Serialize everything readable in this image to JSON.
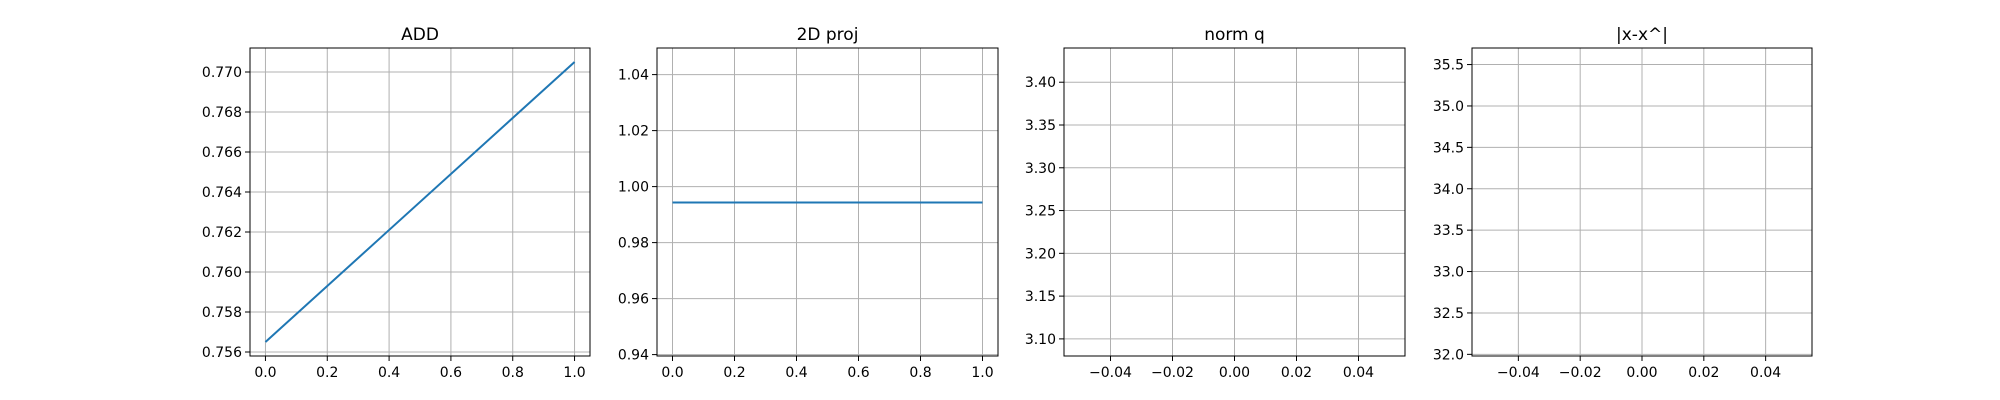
{
  "chart_data": [
    {
      "type": "line",
      "title": "ADD",
      "xlim": [
        -0.05,
        1.05
      ],
      "ylim": [
        0.7558,
        0.7712
      ],
      "xticks": [
        0.0,
        0.2,
        0.4,
        0.6,
        0.8,
        1.0
      ],
      "xtick_labels": [
        "0.0",
        "0.2",
        "0.4",
        "0.6",
        "0.8",
        "1.0"
      ],
      "yticks": [
        0.756,
        0.758,
        0.76,
        0.762,
        0.764,
        0.766,
        0.768,
        0.77
      ],
      "ytick_labels": [
        "0.756",
        "0.758",
        "0.760",
        "0.762",
        "0.764",
        "0.766",
        "0.768",
        "0.770"
      ],
      "grid": true,
      "series": [
        {
          "x": [
            0.0,
            1.0
          ],
          "y": [
            0.7565,
            0.7705
          ],
          "color": "#1f77b4"
        }
      ]
    },
    {
      "type": "line",
      "title": "2D proj",
      "xlim": [
        -0.05,
        1.05
      ],
      "ylim": [
        0.9395,
        1.0495
      ],
      "xticks": [
        0.0,
        0.2,
        0.4,
        0.6,
        0.8,
        1.0
      ],
      "xtick_labels": [
        "0.0",
        "0.2",
        "0.4",
        "0.6",
        "0.8",
        "1.0"
      ],
      "yticks": [
        0.94,
        0.96,
        0.98,
        1.0,
        1.02,
        1.04
      ],
      "ytick_labels": [
        "0.94",
        "0.96",
        "0.98",
        "1.00",
        "1.02",
        "1.04"
      ],
      "grid": true,
      "series": [
        {
          "x": [
            0.0,
            1.0
          ],
          "y": [
            0.9943,
            0.9943
          ],
          "color": "#1f77b4"
        }
      ]
    },
    {
      "type": "line",
      "title": "norm q",
      "xlim": [
        -0.055,
        0.055
      ],
      "ylim": [
        3.08,
        3.44
      ],
      "xticks": [
        -0.04,
        -0.02,
        0.0,
        0.02,
        0.04
      ],
      "xtick_labels": [
        "−0.04",
        "−0.02",
        "0.00",
        "0.02",
        "0.04"
      ],
      "yticks": [
        3.1,
        3.15,
        3.2,
        3.25,
        3.3,
        3.35,
        3.4
      ],
      "ytick_labels": [
        "3.10",
        "3.15",
        "3.20",
        "3.25",
        "3.30",
        "3.35",
        "3.40"
      ],
      "grid": true,
      "series": []
    },
    {
      "type": "line",
      "title": "|x-x^|",
      "xlim": [
        -0.055,
        0.055
      ],
      "ylim": [
        31.98,
        35.7
      ],
      "xticks": [
        -0.04,
        -0.02,
        0.0,
        0.02,
        0.04
      ],
      "xtick_labels": [
        "−0.04",
        "−0.02",
        "0.00",
        "0.02",
        "0.04"
      ],
      "yticks": [
        32.0,
        32.5,
        33.0,
        33.5,
        34.0,
        34.5,
        35.0,
        35.5
      ],
      "ytick_labels": [
        "32.0",
        "32.5",
        "33.0",
        "33.5",
        "34.0",
        "34.5",
        "35.0",
        "35.5"
      ],
      "grid": true,
      "series": []
    }
  ]
}
